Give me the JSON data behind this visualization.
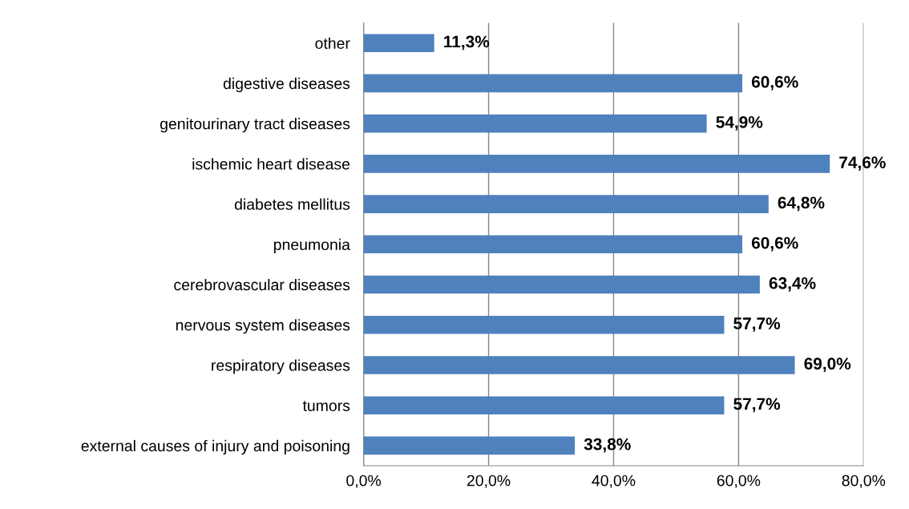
{
  "chart_data": {
    "type": "bar",
    "orientation": "horizontal",
    "categories": [
      "other",
      "digestive diseases",
      "genitourinary tract diseases",
      "ischemic heart disease",
      "diabetes mellitus",
      "pneumonia",
      "cerebrovascular diseases",
      "nervous system diseases",
      "respiratory diseases",
      "tumors",
      "external causes of injury and poisoning"
    ],
    "values": [
      11.3,
      60.6,
      54.9,
      74.6,
      64.8,
      60.6,
      63.4,
      57.7,
      69.0,
      57.7,
      33.8
    ],
    "value_labels": [
      "11,3%",
      "60,6%",
      "54,9%",
      "74,6%",
      "64,8%",
      "60,6%",
      "63,4%",
      "57,7%",
      "69,0%",
      "57,7%",
      "33,8%"
    ],
    "color": "#4f81bd",
    "xlim": [
      0,
      80
    ],
    "xticks": [
      {
        "value": 0,
        "label": "0,0%"
      },
      {
        "value": 20,
        "label": "20,0%"
      },
      {
        "value": 40,
        "label": "40,0%"
      },
      {
        "value": 60,
        "label": "60,0%"
      },
      {
        "value": 80,
        "label": "80,0%"
      }
    ],
    "grid": "x",
    "legend": false
  }
}
